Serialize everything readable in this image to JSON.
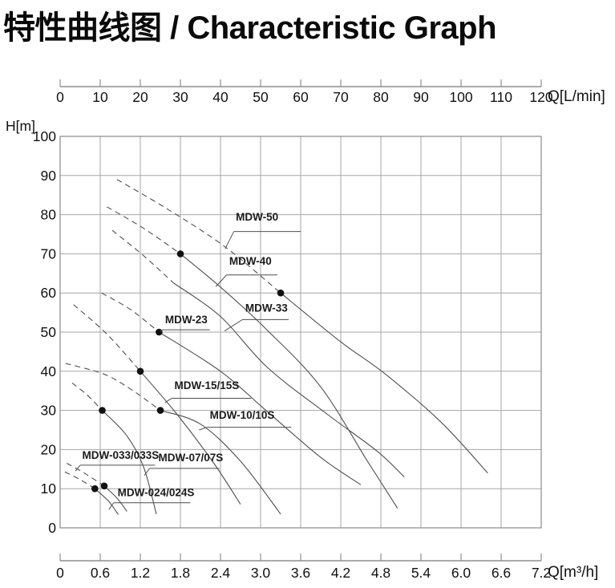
{
  "title": "特性曲线图 / Characteristic Graph",
  "colors": {
    "grid": "#a6a6a6",
    "border": "#8a8a8a",
    "axis": "#8f8f8f",
    "curve": "#4f4f4f",
    "dot": "#111111",
    "tick_text": "#111111",
    "label_text": "#1b1b1b",
    "title_text": "#0a0a0a"
  },
  "chart_data": {
    "type": "line",
    "title": "特性曲线图 / Characteristic Graph",
    "ylabel": "H[m]",
    "xlabel_top": "Q[L/min]",
    "xlabel_bottom": "Q[m³/h]",
    "xlim": [
      0,
      7.2
    ],
    "ylim": [
      0,
      100
    ],
    "grid": true,
    "top_axis": {
      "label": "Q[L/min]",
      "ticks": [
        0,
        10,
        20,
        30,
        40,
        50,
        60,
        70,
        80,
        90,
        100,
        110,
        120
      ]
    },
    "bottom_axis": {
      "label": "Q[m³/h]",
      "ticks": [
        "0",
        "0.6",
        "1.2",
        "1.8",
        "2.4",
        "3.0",
        "3.6",
        "4.2",
        "4.8",
        "5.4",
        "6.0",
        "6.6",
        "7.2"
      ]
    },
    "left_axis": {
      "label": "H[m]",
      "ticks": [
        100,
        90,
        80,
        70,
        60,
        50,
        40,
        30,
        20,
        10,
        0
      ]
    },
    "series": [
      {
        "name": "MDW-50",
        "dashed": [
          [
            0.85,
            89
          ],
          [
            1.6,
            81.5
          ],
          [
            2.45,
            72
          ],
          [
            3.3,
            60
          ]
        ],
        "solid": [
          [
            3.3,
            60
          ],
          [
            4.2,
            47.5
          ],
          [
            4.85,
            39.5
          ],
          [
            5.7,
            27
          ],
          [
            6.4,
            14
          ]
        ],
        "dot": [
          3.3,
          60
        ],
        "label": {
          "text": "MDW-50",
          "x": 2.63,
          "y": 80.4,
          "underline": [
            2.6,
            3.6,
            75.7
          ],
          "leader": [
            [
              2.6,
              75.7
            ],
            [
              2.47,
              71.3
            ]
          ]
        }
      },
      {
        "name": "MDW-40",
        "dashed": [
          [
            0.7,
            82
          ],
          [
            1.25,
            76.5
          ],
          [
            1.8,
            70
          ]
        ],
        "solid": [
          [
            1.8,
            70
          ],
          [
            2.4,
            61.5
          ],
          [
            3.1,
            50.5
          ],
          [
            3.9,
            36
          ],
          [
            4.6,
            17
          ],
          [
            5.05,
            5
          ]
        ],
        "dot": [
          1.8,
          70
        ],
        "label": {
          "text": "MDW-40",
          "x": 2.53,
          "y": 69.2,
          "underline": [
            2.49,
            3.25,
            64.6
          ],
          "leader": [
            [
              2.49,
              64.6
            ],
            [
              2.33,
              61.6
            ]
          ]
        }
      },
      {
        "name": "MDW-33",
        "dashed": [
          [
            0.78,
            76
          ],
          [
            1.25,
            69.5
          ],
          [
            1.7,
            62.5
          ]
        ],
        "solid": [
          [
            1.7,
            62.5
          ],
          [
            2.4,
            54
          ],
          [
            3.1,
            41
          ],
          [
            4.0,
            29
          ],
          [
            4.75,
            19.5
          ],
          [
            5.15,
            13
          ]
        ],
        "dot": null,
        "label": {
          "text": "MDW-33",
          "x": 2.77,
          "y": 57.2,
          "underline": [
            2.73,
            3.42,
            53.2
          ],
          "leader": [
            [
              2.73,
              53.2
            ],
            [
              2.46,
              50.3
            ]
          ]
        }
      },
      {
        "name": "MDW-23",
        "dashed": [
          [
            0.62,
            60
          ],
          [
            1.05,
            55.8
          ],
          [
            1.48,
            50
          ]
        ],
        "solid": [
          [
            1.48,
            50
          ],
          [
            2.4,
            40
          ],
          [
            3.1,
            29.7
          ],
          [
            3.9,
            18
          ],
          [
            4.5,
            11
          ]
        ],
        "dot": [
          1.48,
          50
        ],
        "label": {
          "text": "MDW-23",
          "x": 1.57,
          "y": 54.2,
          "underline": [
            1.53,
            2.24,
            50.6
          ],
          "leader": [
            [
              1.53,
              50.6
            ],
            [
              1.5,
              50.2
            ]
          ]
        }
      },
      {
        "name": "MDW-15/15S",
        "dashed": [
          [
            0.2,
            57
          ],
          [
            0.7,
            49.5
          ],
          [
            1.2,
            40
          ]
        ],
        "solid": [
          [
            1.2,
            40
          ],
          [
            1.75,
            29
          ],
          [
            2.3,
            16.5
          ],
          [
            2.7,
            6
          ]
        ],
        "dot": [
          1.2,
          40
        ],
        "label": {
          "text": "MDW-15/15S",
          "x": 1.71,
          "y": 37.4,
          "underline": [
            1.67,
            2.86,
            33.1
          ],
          "leader": [
            [
              1.67,
              33.1
            ],
            [
              1.57,
              32.0
            ]
          ]
        }
      },
      {
        "name": "MDW-10/10S",
        "dashed": [
          [
            0.08,
            42
          ],
          [
            0.65,
            39.3
          ],
          [
            1.05,
            35.5
          ],
          [
            1.5,
            30
          ]
        ],
        "solid": [
          [
            1.5,
            30
          ],
          [
            2.1,
            26.5
          ],
          [
            2.7,
            17
          ],
          [
            3.3,
            3.5
          ]
        ],
        "dot": [
          1.5,
          30
        ],
        "label": {
          "text": "MDW-10/10S",
          "x": 2.24,
          "y": 29.8,
          "underline": [
            2.2,
            3.46,
            25.7
          ],
          "leader": [
            [
              2.2,
              25.7
            ],
            [
              2.08,
              25.0
            ]
          ]
        }
      },
      {
        "name": "MDW-07/07S",
        "dashed": [
          [
            0.18,
            37
          ],
          [
            0.4,
            34
          ],
          [
            0.63,
            30
          ]
        ],
        "solid": [
          [
            0.63,
            30
          ],
          [
            1.0,
            23.5
          ],
          [
            1.25,
            15.5
          ],
          [
            1.44,
            3.5
          ]
        ],
        "dot": [
          0.63,
          30
        ],
        "label": {
          "text": "MDW-07/07S",
          "x": 1.47,
          "y": 19.0,
          "underline": [
            1.34,
            2.38,
            15.2
          ],
          "leader": [
            [
              1.34,
              15.2
            ],
            [
              1.26,
              13.4
            ]
          ]
        }
      },
      {
        "name": "MDW-033/033S",
        "dashed": [
          [
            0.1,
            16.5
          ],
          [
            0.38,
            13.8
          ],
          [
            0.66,
            10.7
          ]
        ],
        "solid": [
          [
            0.66,
            10.7
          ],
          [
            0.85,
            7.6
          ],
          [
            1.0,
            4.2
          ]
        ],
        "dot": [
          0.66,
          10.7
        ],
        "label": {
          "text": "MDW-033/033S",
          "x": 0.33,
          "y": 19.6,
          "underline": [
            0.3,
            1.42,
            16.0
          ],
          "leader": [
            [
              0.3,
              16.0
            ],
            [
              0.23,
              14.5
            ]
          ]
        }
      },
      {
        "name": "MDW-024/024S",
        "dashed": [
          [
            0.07,
            14.3
          ],
          [
            0.3,
            12.3
          ],
          [
            0.52,
            10
          ]
        ],
        "solid": [
          [
            0.52,
            10
          ],
          [
            0.72,
            6.9
          ],
          [
            0.87,
            3.4
          ]
        ],
        "dot": [
          0.52,
          10
        ],
        "label": {
          "text": "MDW-024/024S",
          "x": 0.86,
          "y": 10.1,
          "underline": [
            0.8,
            1.95,
            6.4
          ],
          "leader": [
            [
              0.8,
              6.4
            ],
            [
              0.73,
              4.7
            ]
          ]
        }
      }
    ]
  }
}
